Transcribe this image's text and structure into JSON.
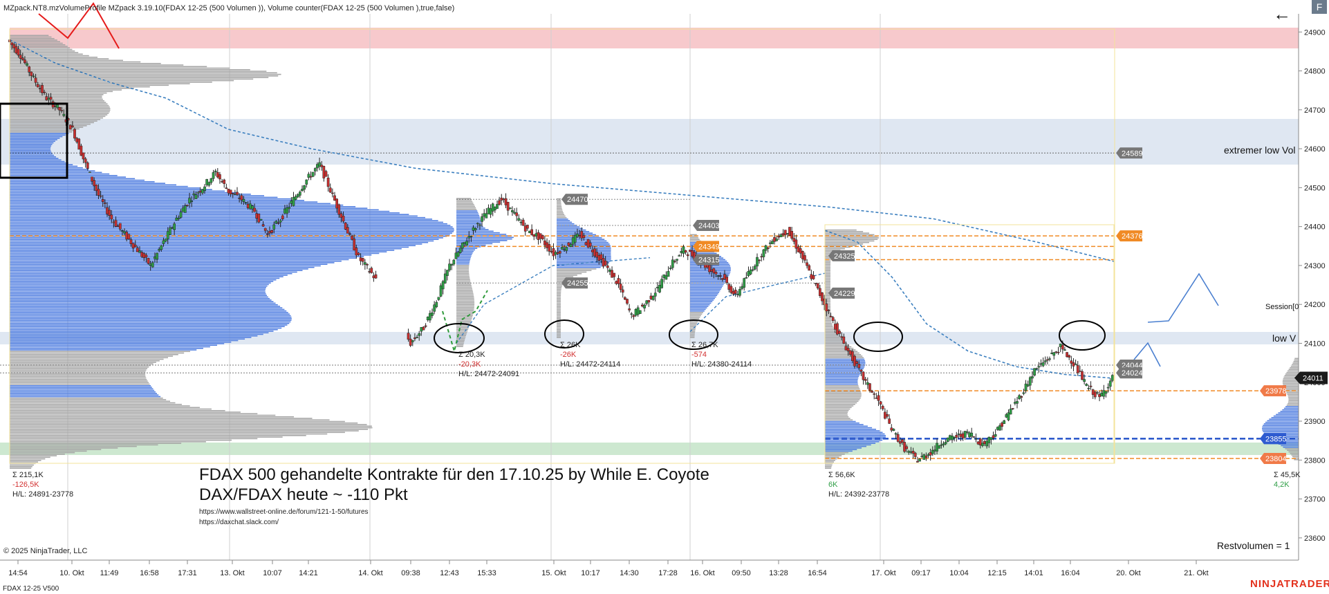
{
  "header": {
    "indicator_line": "MZpack.NT8.mzVolumeProfile MZpack 3.19.10(FDAX 12-25 (500 Volumen )), Volume counter(FDAX 12-25 (500 Volumen ),true,false)",
    "back_icon": "arrow-left-icon",
    "corner_badge": "F"
  },
  "footer": {
    "instrument": "FDAX 12-25 V500",
    "copyright": "© 2025 NinjaTrader, LLC",
    "logo": "NINJATRADER",
    "restvolumen": "Restvolumen = 1"
  },
  "annotations": {
    "main_title": "FDAX 500 gehandelte Kontrakte für den 17.10.25 by While E. Coyote",
    "subtitle": "DAX/FDAX heute ~ -110 Pkt",
    "link1": "https://www.wallstreet-online.de/forum/121-1-50/futures",
    "link2": "https://daxchat.slack.com/",
    "extreme_low_vol": "extremer low Vol",
    "low_vol": "low V",
    "session": "Session[0"
  },
  "colors": {
    "profile_blue": "#4f7de0",
    "profile_gray": "#a5a5a5",
    "poc_orange": "#f08a24",
    "vwap_blue": "#3b7fbf",
    "red_zone": "#f7c9cc",
    "green_zone": "#cde8d0",
    "blue_zone": "#dfe7f2",
    "price_badge": "#1a1a1a"
  },
  "chart_data": {
    "type": "candlestick",
    "instrument": "FDAX 12-25",
    "bar_type": "500 Volumen",
    "ylim": [
      23550,
      24920
    ],
    "y_ticks": [
      23600,
      23700,
      23800,
      23900,
      24000,
      24100,
      24200,
      24300,
      24400,
      24500,
      24600,
      24700,
      24800,
      24900
    ],
    "x_ticks": [
      "14:54",
      "10. Okt",
      "11:49",
      "16:58",
      "17:31",
      "13. Okt",
      "10:07",
      "14:21",
      "14. Okt",
      "09:38",
      "12:43",
      "15:33",
      "15. Okt",
      "10:17",
      "14:30",
      "17:28",
      "16. Okt",
      "09:50",
      "13:28",
      "16:54",
      "17. Okt",
      "09:17",
      "10:04",
      "12:15",
      "14:01",
      "16:04",
      "20. Okt",
      "21. Okt"
    ],
    "last_price": 24011,
    "price_path": [
      24880,
      24840,
      24780,
      24730,
      24700,
      24650,
      24560,
      24480,
      24420,
      24380,
      24340,
      24300,
      24360,
      24420,
      24470,
      24500,
      24540,
      24490,
      24470,
      24440,
      24380,
      24420,
      24470,
      24520,
      24560,
      24480,
      24400,
      24320,
      24280,
      24230,
      24160,
      24100,
      24140,
      24210,
      24300,
      24350,
      24400,
      24440,
      24470,
      24430,
      24390,
      24370,
      24330,
      24350,
      24380,
      24340,
      24300,
      24250,
      24170,
      24200,
      24240,
      24300,
      24340,
      24320,
      24290,
      24270,
      24220,
      24280,
      24330,
      24370,
      24390,
      24330,
      24260,
      24190,
      24120,
      24060,
      24000,
      23950,
      23880,
      23830,
      23800,
      23820,
      23850,
      23860,
      23870,
      23840,
      23870,
      23920,
      23970,
      24030,
      24060,
      24090,
      24050,
      23990,
      23960,
      24011
    ],
    "sessions": [
      {
        "sigma": "Σ 215,1K",
        "delta": "-126,5K",
        "hl": "H/L: 24891-23778"
      },
      {
        "sigma": "Σ 20,3K",
        "delta": "-20,3K",
        "hl": "H/L: 24472-24091"
      },
      {
        "sigma": "Σ 26K",
        "delta": "-26K",
        "hl": "H/L: 24472-24114"
      },
      {
        "sigma": "Σ 26,7K",
        "delta": "-574",
        "hl": "H/L: 24380-24114"
      },
      {
        "sigma": "Σ 56,6K",
        "delta": "6K",
        "hl": "H/L: 24392-23778"
      },
      {
        "sigma": "Σ 45,5K",
        "delta": "4,2K",
        "hl": ""
      }
    ],
    "level_badges": [
      {
        "price": 24589,
        "label": "24589",
        "kind": "gray"
      },
      {
        "price": 24376,
        "label": "24376",
        "kind": "orange"
      },
      {
        "price": 24470,
        "label": "24470",
        "kind": "gray"
      },
      {
        "price": 24403,
        "label": "24403",
        "kind": "gray"
      },
      {
        "price": 24349,
        "label": "24349",
        "kind": "orange"
      },
      {
        "price": 24315,
        "label": "24315",
        "kind": "gray"
      },
      {
        "price": 24255,
        "label": "24255",
        "kind": "gray"
      },
      {
        "price": 24325,
        "label": "24325",
        "kind": "gray"
      },
      {
        "price": 24229,
        "label": "24229",
        "kind": "gray"
      },
      {
        "price": 24044,
        "label": "24044",
        "kind": "gray"
      },
      {
        "price": 24024,
        "label": "24024",
        "kind": "gray"
      },
      {
        "price": 23978,
        "label": "23978",
        "kind": "salmon"
      },
      {
        "price": 23855,
        "label": "23855",
        "kind": "blue"
      },
      {
        "price": 23804,
        "label": "23804",
        "kind": "salmon"
      }
    ]
  }
}
